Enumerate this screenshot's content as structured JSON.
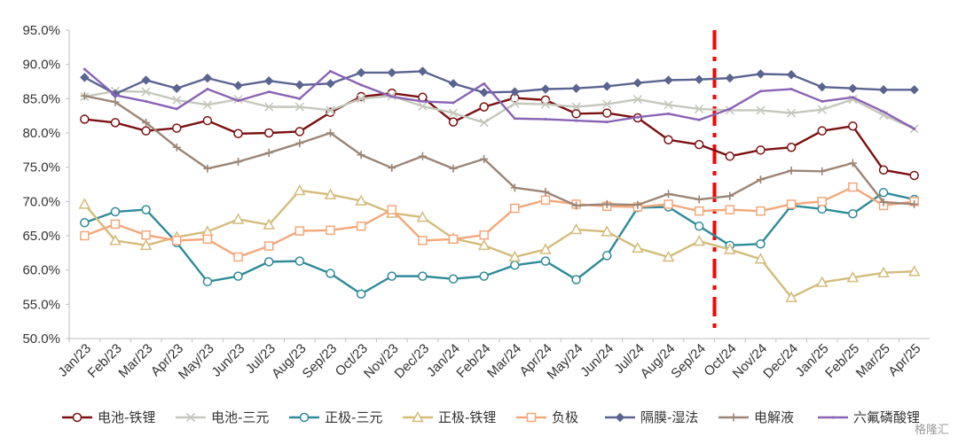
{
  "chart_data": {
    "type": "line",
    "title": "",
    "xlabel": "",
    "ylabel": "",
    "ylim": [
      50,
      95
    ],
    "yticks": [
      "50.0%",
      "55.0%",
      "60.0%",
      "65.0%",
      "70.0%",
      "75.0%",
      "80.0%",
      "85.0%",
      "90.0%",
      "95.0%"
    ],
    "grid": false,
    "legend_position": "bottom",
    "categories": [
      "Jan/23",
      "Feb/23",
      "Mar/23",
      "Apr/23",
      "May/23",
      "Jun/23",
      "Jul/23",
      "Aug/23",
      "Sep/23",
      "Oct/23",
      "Nov/23",
      "Dec/23",
      "Jan/24",
      "Feb/24",
      "Mar/24",
      "Apr/24",
      "May/24",
      "Jun/24",
      "Jul/24",
      "Aug/24",
      "Sep/24",
      "Oct/24",
      "Nov/24",
      "Dec/24",
      "Jan/25",
      "Feb/25",
      "Mar/25",
      "Apr/25"
    ],
    "divider_between": [
      "Sep/24",
      "Oct/24"
    ],
    "divider_color": "#ff0000",
    "series": [
      {
        "name": "电池-铁锂",
        "color": "#7b1010",
        "marker": "circle",
        "values": [
          82.0,
          81.5,
          80.3,
          80.7,
          81.8,
          79.9,
          80.0,
          80.2,
          83.0,
          85.3,
          85.8,
          85.2,
          81.6,
          83.8,
          85.1,
          84.8,
          82.8,
          82.9,
          82.2,
          79.0,
          78.3,
          76.6,
          77.5,
          77.9,
          80.3,
          81.0,
          74.6,
          73.8
        ]
      },
      {
        "name": "电池-三元",
        "color": "#c4c8bc",
        "marker": "x",
        "values": [
          85.3,
          86.1,
          86.0,
          84.8,
          84.1,
          84.9,
          83.8,
          83.8,
          83.3,
          85.0,
          85.4,
          83.9,
          82.9,
          81.5,
          84.3,
          84.2,
          83.8,
          84.2,
          84.9,
          84.1,
          83.5,
          83.3,
          83.3,
          82.9,
          83.4,
          84.9,
          82.6,
          80.6
        ]
      },
      {
        "name": "正极-三元",
        "color": "#2e8b9a",
        "marker": "circle",
        "values": [
          66.9,
          68.5,
          68.8,
          64.0,
          58.3,
          59.1,
          61.2,
          61.3,
          59.5,
          56.5,
          59.1,
          59.1,
          58.7,
          59.1,
          60.7,
          61.3,
          58.6,
          62.1,
          69.1,
          69.2,
          66.4,
          63.6,
          63.8,
          69.4,
          68.9,
          68.2,
          71.3,
          70.3
        ]
      },
      {
        "name": "正极-铁锂",
        "color": "#d4bc7a",
        "marker": "triangle",
        "values": [
          69.6,
          64.3,
          63.6,
          64.8,
          65.6,
          67.4,
          66.6,
          71.6,
          71.0,
          70.1,
          68.3,
          67.7,
          64.6,
          63.6,
          61.9,
          63.0,
          65.9,
          65.6,
          63.2,
          61.9,
          64.2,
          63.0,
          61.6,
          56.0,
          58.2,
          58.9,
          59.6,
          59.8
        ]
      },
      {
        "name": "负极",
        "color": "#f4a77a",
        "marker": "square",
        "values": [
          65.0,
          66.7,
          65.1,
          64.3,
          64.5,
          61.9,
          63.5,
          65.7,
          65.8,
          66.4,
          68.8,
          64.3,
          64.5,
          65.1,
          69.0,
          70.2,
          69.6,
          69.3,
          69.2,
          69.6,
          68.6,
          68.8,
          68.6,
          69.6,
          70.0,
          72.1,
          69.4,
          70.0
        ]
      },
      {
        "name": "隔膜-湿法",
        "color": "#5a6490",
        "marker": "diamond",
        "values": [
          88.1,
          85.7,
          87.7,
          86.5,
          88.0,
          86.9,
          87.6,
          87.0,
          87.2,
          88.8,
          88.8,
          89.0,
          87.2,
          85.9,
          86.0,
          86.4,
          86.5,
          86.8,
          87.3,
          87.7,
          87.8,
          88.0,
          88.6,
          88.5,
          86.7,
          86.5,
          86.3,
          86.3
        ]
      },
      {
        "name": "电解液",
        "color": "#9c8575",
        "marker": "plus",
        "values": [
          85.4,
          84.5,
          81.5,
          77.9,
          74.8,
          75.8,
          77.1,
          78.5,
          80.0,
          76.8,
          74.9,
          76.6,
          74.8,
          76.2,
          72.0,
          71.4,
          69.4,
          69.6,
          69.5,
          71.1,
          70.3,
          70.8,
          73.2,
          74.5,
          74.4,
          75.6,
          69.9,
          69.6
        ]
      },
      {
        "name": "六氟磷酸锂",
        "color": "#8a63b5",
        "marker": "line",
        "values": [
          89.3,
          85.5,
          84.6,
          83.5,
          86.4,
          84.7,
          86.0,
          85.0,
          89.0,
          87.0,
          85.3,
          84.6,
          84.4,
          87.2,
          82.1,
          82.0,
          81.8,
          81.6,
          82.3,
          82.8,
          81.9,
          83.5,
          86.1,
          86.4,
          84.6,
          85.2,
          83.1,
          80.6
        ]
      }
    ]
  },
  "watermark": "格隆汇"
}
